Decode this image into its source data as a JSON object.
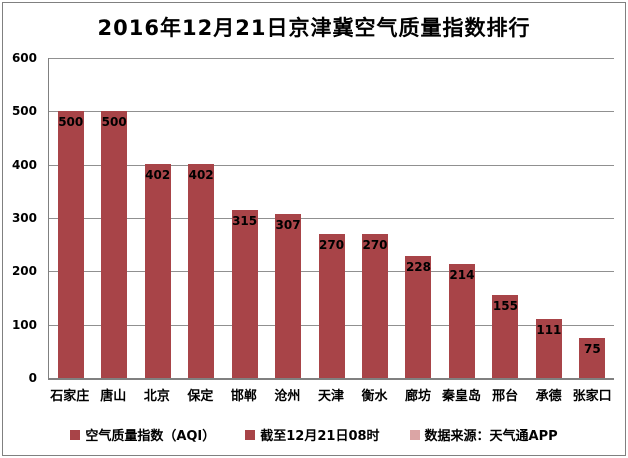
{
  "chart_data": {
    "type": "bar",
    "title": "2016年12月21日京津冀空气质量指数排行",
    "categories": [
      "石家庄",
      "唐山",
      "北京",
      "保定",
      "邯郸",
      "沧州",
      "天津",
      "衡水",
      "廊坊",
      "秦皇岛",
      "邢台",
      "承德",
      "张家口"
    ],
    "values": [
      500,
      500,
      402,
      402,
      315,
      307,
      270,
      270,
      228,
      214,
      155,
      111,
      75
    ],
    "xlabel": "",
    "ylabel": "",
    "ylim": [
      0,
      600
    ],
    "ytick_interval": 100,
    "yticks": [
      0,
      100,
      200,
      300,
      400,
      500,
      600
    ],
    "grid": true,
    "legend_position": "bottom",
    "data_labels": "inside-top",
    "bar_color": "#A84448"
  },
  "legend": {
    "items": [
      {
        "label": "空气质量指数（AQI）",
        "color": "#A84448"
      },
      {
        "label": "截至12月21日08时",
        "color": "#A84448"
      },
      {
        "label": "数据来源：天气通APP",
        "color": "#DBA5A5"
      }
    ]
  },
  "colors": {
    "bar": "#A84448",
    "legend_alt_swatch": "#DBA5A5",
    "gridline": "#909090",
    "axis": "#808080",
    "frame_border": "#808080",
    "background": "#FFFFFF",
    "text": "#000000"
  }
}
